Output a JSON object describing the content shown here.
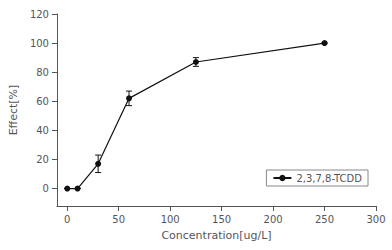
{
  "chart_data": {
    "type": "line",
    "x": [
      0,
      10,
      30,
      60,
      125,
      250
    ],
    "series": [
      {
        "name": "2,3,7,8-TCDD",
        "color": "#111111",
        "marker": "circle",
        "line_style": "solid",
        "values": [
          0,
          0,
          17,
          62,
          87,
          100
        ],
        "yerr": [
          0,
          0,
          6,
          5,
          3,
          0
        ]
      }
    ],
    "xlabel": "Concentration[ug/L]",
    "ylabel": "Effect[%]",
    "xlim": [
      -10,
      300
    ],
    "ylim": [
      -12,
      120
    ],
    "xticks": [
      0,
      50,
      100,
      150,
      200,
      250,
      300
    ],
    "yticks": [
      0,
      20,
      40,
      60,
      80,
      100,
      120
    ],
    "grid": false,
    "legend": "lower right"
  }
}
